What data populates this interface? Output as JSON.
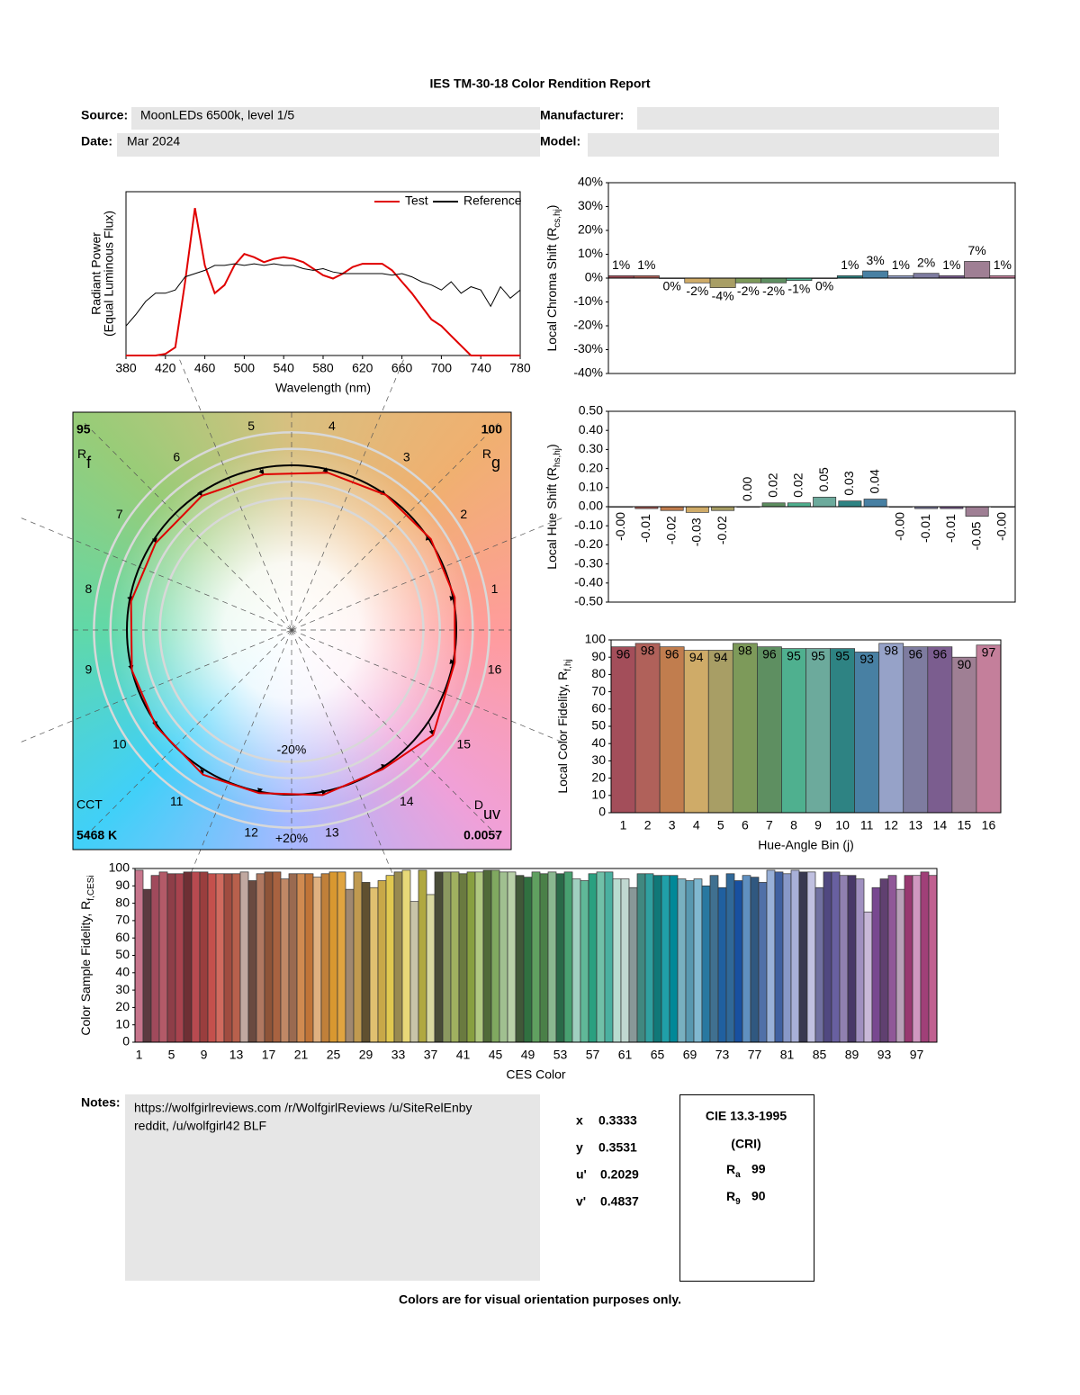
{
  "header": {
    "title": "IES TM-30-18 Color Rendition Report",
    "source_label": "Source:",
    "source": "MoonLEDs 6500k, level 1/5",
    "manufacturer_label": "Manufacturer:",
    "date_label": "Date:",
    "date": "Mar 2024",
    "model_label": "Model:"
  },
  "chart_data": [
    {
      "type": "line",
      "ylabel": [
        "Radiant Power",
        "(Equal Luminous Flux)"
      ],
      "xlabel": "Wavelength (nm)",
      "xlim": [
        380,
        780
      ],
      "xticks": [
        380,
        420,
        460,
        500,
        540,
        580,
        620,
        660,
        700,
        740,
        780
      ],
      "ylim": [
        0,
        1
      ],
      "legend": "upper right",
      "x": [
        380,
        390,
        400,
        410,
        420,
        430,
        440,
        450,
        460,
        470,
        480,
        490,
        500,
        510,
        520,
        530,
        540,
        550,
        560,
        570,
        580,
        590,
        600,
        610,
        620,
        630,
        640,
        650,
        660,
        670,
        680,
        690,
        700,
        710,
        720,
        730,
        740,
        750,
        760,
        770,
        780
      ],
      "series": [
        {
          "name": "Test",
          "color": "#e00000",
          "values": [
            0,
            0,
            0,
            0,
            0.01,
            0.05,
            0.45,
            0.9,
            0.55,
            0.38,
            0.43,
            0.55,
            0.62,
            0.6,
            0.57,
            0.59,
            0.6,
            0.59,
            0.57,
            0.53,
            0.49,
            0.47,
            0.5,
            0.54,
            0.56,
            0.56,
            0.56,
            0.52,
            0.45,
            0.38,
            0.3,
            0.22,
            0.18,
            0.12,
            0.06,
            0,
            0,
            0,
            0,
            0,
            0
          ]
        },
        {
          "name": "Reference",
          "color": "#000000",
          "values": [
            0.18,
            0.25,
            0.33,
            0.38,
            0.38,
            0.4,
            0.48,
            0.5,
            0.52,
            0.55,
            0.55,
            0.56,
            0.55,
            0.56,
            0.55,
            0.56,
            0.55,
            0.55,
            0.53,
            0.52,
            0.53,
            0.51,
            0.5,
            0.5,
            0.5,
            0.5,
            0.5,
            0.49,
            0.5,
            0.48,
            0.45,
            0.43,
            0.4,
            0.45,
            0.38,
            0.42,
            0.4,
            0.3,
            0.42,
            0.35,
            0.4
          ]
        }
      ]
    },
    {
      "type": "bar",
      "ylabel": [
        "Local Chroma Shift (R",
        "cs,hj",
        ")"
      ],
      "ylim": [
        -40,
        40
      ],
      "yticks": [
        {
          "value": 40,
          "label": "40%"
        },
        {
          "value": 30,
          "label": "30%"
        },
        {
          "value": 20,
          "label": "20%"
        },
        {
          "value": 10,
          "label": "10%"
        },
        {
          "value": 0,
          "label": "0%"
        },
        {
          "value": -10,
          "label": "-10%"
        },
        {
          "value": -20,
          "label": "-20%"
        },
        {
          "value": -30,
          "label": "-30%"
        },
        {
          "value": -40,
          "label": "-40%"
        }
      ],
      "values": [
        1,
        1,
        0,
        -2,
        -4,
        -2,
        -2,
        -1,
        0,
        1,
        3,
        1,
        2,
        1,
        7,
        1
      ],
      "value_labels": [
        "1%",
        "1%",
        "0%",
        "-2%",
        "-4%",
        "-2%",
        "-2%",
        "-1%",
        "0%",
        "1%",
        "3%",
        "1%",
        "2%",
        "1%",
        "7%",
        "1%"
      ],
      "colors": [
        "#a34e5a",
        "#b0615a",
        "#c17d4e",
        "#cfab68",
        "#a89e65",
        "#7d9a5a",
        "#5e8f61",
        "#4fb08f",
        "#6caa9c",
        "#2e8383",
        "#4880a3",
        "#96a2c8",
        "#7e7ca0",
        "#7b5d8f",
        "#9f7f94",
        "#c47f9b"
      ]
    },
    {
      "type": "bar",
      "ylabel": [
        "Local Hue Shift (R",
        "hs,hj",
        ")"
      ],
      "ylim": [
        -0.5,
        0.5
      ],
      "yticks": [
        {
          "value": 0.5,
          "label": "0.50"
        },
        {
          "value": 0.4,
          "label": "0.40"
        },
        {
          "value": 0.3,
          "label": "0.30"
        },
        {
          "value": 0.2,
          "label": "0.20"
        },
        {
          "value": 0.1,
          "label": "0.10"
        },
        {
          "value": 0,
          "label": "0.00"
        },
        {
          "value": -0.1,
          "label": "-0.10"
        },
        {
          "value": -0.2,
          "label": "-0.20"
        },
        {
          "value": -0.3,
          "label": "-0.30"
        },
        {
          "value": -0.4,
          "label": "-0.40"
        },
        {
          "value": -0.5,
          "label": "-0.50"
        }
      ],
      "values": [
        0,
        -0.01,
        -0.02,
        -0.03,
        -0.02,
        0,
        0.02,
        0.02,
        0.05,
        0.03,
        0.04,
        0,
        -0.01,
        -0.01,
        -0.05,
        0
      ],
      "value_labels": [
        "-0.00",
        "-0.01",
        "-0.02",
        "-0.03",
        "-0.02",
        "0.00",
        "0.02",
        "0.02",
        "0.05",
        "0.03",
        "0.04",
        "-0.00",
        "-0.01",
        "-0.01",
        "-0.05",
        "-0.00"
      ],
      "colors": [
        "#a34e5a",
        "#b0615a",
        "#c17d4e",
        "#cfab68",
        "#a89e65",
        "#7d9a5a",
        "#5e8f61",
        "#4fb08f",
        "#6caa9c",
        "#2e8383",
        "#4880a3",
        "#96a2c8",
        "#7e7ca0",
        "#7b5d8f",
        "#9f7f94",
        "#c47f9b"
      ]
    },
    {
      "type": "vector",
      "rf": 95,
      "rf_label": [
        "R",
        "f"
      ],
      "rg": 100,
      "rg_label": [
        "R",
        "g"
      ],
      "cct_label": "CCT",
      "cct": "5468 K",
      "duv_label": [
        "D",
        "uv"
      ],
      "duv": 0.0057,
      "bins": [
        "1",
        "2",
        "3",
        "4",
        "5",
        "6",
        "7",
        "8",
        "9",
        "10",
        "11",
        "12",
        "13",
        "14",
        "15",
        "16"
      ],
      "ring_labels": [
        "-20%",
        "+20%"
      ],
      "reference_color": "#000000",
      "test_color": "#e00000"
    },
    {
      "type": "bar",
      "ylabel": [
        "Local Color Fidelity, R",
        "f,hj"
      ],
      "xlabel": "Hue-Angle Bin (j)",
      "ylim": [
        0,
        100
      ],
      "yticks": [
        0,
        10,
        20,
        30,
        40,
        50,
        60,
        70,
        80,
        90,
        100
      ],
      "categories": [
        "1",
        "2",
        "3",
        "4",
        "5",
        "6",
        "7",
        "8",
        "9",
        "10",
        "11",
        "12",
        "13",
        "14",
        "15",
        "16"
      ],
      "values": [
        96,
        98,
        96,
        94,
        94,
        98,
        96,
        95,
        95,
        95,
        93,
        98,
        96,
        96,
        90,
        97
      ],
      "colors": [
        "#a34e5a",
        "#b0615a",
        "#c17d4e",
        "#cfab68",
        "#a89e65",
        "#7d9a5a",
        "#5e8f61",
        "#4fb08f",
        "#6caa9c",
        "#2e8383",
        "#4880a3",
        "#96a2c8",
        "#7e7ca0",
        "#7b5d8f",
        "#9f7f94",
        "#c47f9b"
      ]
    },
    {
      "type": "bar",
      "ylabel": [
        "Color Sample Fidelity, R",
        "f,CESi"
      ],
      "xlabel": "CES Color",
      "ylim": [
        0,
        100
      ],
      "yticks": [
        0,
        10,
        20,
        30,
        40,
        50,
        60,
        70,
        80,
        90,
        100
      ],
      "categories": [
        "1",
        null,
        null,
        null,
        "5",
        null,
        null,
        null,
        "9",
        null,
        null,
        null,
        "13",
        null,
        null,
        null,
        "17",
        null,
        null,
        null,
        "21",
        null,
        null,
        null,
        "25",
        null,
        null,
        null,
        "29",
        null,
        null,
        null,
        "33",
        null,
        null,
        null,
        "37",
        null,
        null,
        null,
        "41",
        null,
        null,
        null,
        "45",
        null,
        null,
        null,
        "49",
        null,
        null,
        null,
        "53",
        null,
        null,
        null,
        "57",
        null,
        null,
        null,
        "61",
        null,
        null,
        null,
        "65",
        null,
        null,
        null,
        "69",
        null,
        null,
        null,
        "73",
        null,
        null,
        null,
        "77",
        null,
        null,
        null,
        "81",
        null,
        null,
        null,
        "85",
        null,
        null,
        null,
        "89",
        null,
        null,
        null,
        "93",
        null,
        null,
        null,
        "97",
        null,
        null
      ],
      "values": [
        99,
        88,
        96,
        98,
        97,
        97,
        98,
        98,
        98,
        97,
        97,
        97,
        97,
        98,
        93,
        97,
        98,
        98,
        94,
        97,
        97,
        97,
        95,
        97,
        98,
        98,
        88,
        98,
        92,
        89,
        93,
        96,
        98,
        99,
        81,
        99,
        85,
        98,
        98,
        98,
        97,
        98,
        98,
        99,
        99,
        98,
        98,
        96,
        95,
        98,
        97,
        98,
        97,
        98,
        94,
        93,
        97,
        98,
        98,
        94,
        94,
        89,
        97,
        97,
        96,
        96,
        96,
        94,
        93,
        94,
        90,
        96,
        89,
        97,
        93,
        96,
        95,
        92,
        99,
        98,
        97,
        99,
        98,
        98,
        89,
        98,
        98,
        96,
        96,
        94,
        75,
        89,
        94,
        96,
        88,
        96,
        96,
        98,
        96
      ],
      "colors": [
        "#c7758c",
        "#5c3a40",
        "#a04a5c",
        "#b35a68",
        "#8e3e48",
        "#a8434e",
        "#6e2f34",
        "#b84a50",
        "#9a3e3e",
        "#c4504c",
        "#d06a5e",
        "#a04c40",
        "#b8604c",
        "#c0a8a0",
        "#6a4a40",
        "#b07860",
        "#8e5438",
        "#a86240",
        "#c08866",
        "#9a6a50",
        "#d08a50",
        "#c07438",
        "#e0b080",
        "#c0803a",
        "#d89830",
        "#e0a440",
        "#a08870",
        "#c09a50",
        "#605030",
        "#e0c070",
        "#c8a848",
        "#e0c850",
        "#988a50",
        "#e8d878",
        "#c8c4a8",
        "#b0a840",
        "#d8d8a0",
        "#484c38",
        "#8a9860",
        "#a0b060",
        "#6a7a40",
        "#88a040",
        "#b0c880",
        "#506a38",
        "#80a860",
        "#a0c090",
        "#b8d0a8",
        "#405838",
        "#307040",
        "#60a060",
        "#4a8048",
        "#8ab890",
        "#2a6a48",
        "#48a070",
        "#a0d0c0",
        "#60b898",
        "#2aa080",
        "#70c0a8",
        "#4ab0a0",
        "#b8dcd0",
        "#c0d8d0",
        "#889898",
        "#408880",
        "#30a0a0",
        "#107878",
        "#20a0a8",
        "#008898",
        "#78b0c0",
        "#5898b0",
        "#80b8d0",
        "#2878a0",
        "#407090",
        "#2060a0",
        "#306898",
        "#1850a0",
        "#6090c0",
        "#305880",
        "#5070a8",
        "#98b0d8",
        "#4060a0",
        "#8898c8",
        "#a8b0d8",
        "#383850",
        "#c0c0e0",
        "#7070a0",
        "#504880",
        "#6860a0",
        "#9080b0",
        "#483868",
        "#a090c0",
        "#c8b8d8",
        "#784890",
        "#604070",
        "#905898",
        "#b8a0b8",
        "#983870",
        "#d098c0",
        "#a04078",
        "#c06090"
      ]
    }
  ],
  "notes": {
    "label": "Notes:",
    "lines": [
      "https://wolfgirlreviews.com /r/WolfgirlReviews /u/SiteRelEnby",
      "reddit, /u/wolfgirl42 BLF"
    ]
  },
  "chromaticity": [
    {
      "label": "x",
      "value": 0.3333
    },
    {
      "label": "y",
      "value": 0.3531
    },
    {
      "label": "u'",
      "value": 0.2029
    },
    {
      "label": "v'",
      "value": 0.4837
    }
  ],
  "cri": {
    "title": "CIE 13.3-1995",
    "subtitle": "(CRI)",
    "items": [
      {
        "label": [
          "R",
          "a"
        ],
        "value": 99
      },
      {
        "label": [
          "R",
          "9"
        ],
        "value": 90
      }
    ]
  },
  "footer": "Colors are for visual orientation purposes only."
}
